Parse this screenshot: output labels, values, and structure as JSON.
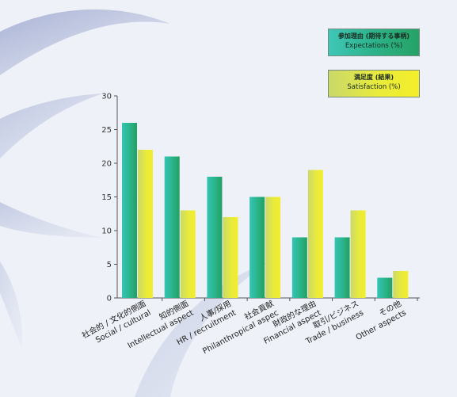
{
  "legend": {
    "expectations_jp": "参加理由 (期待する事柄)",
    "expectations_en": "Expectations (%)",
    "satisfaction_jp": "満足度 (結果)",
    "satisfaction_en": "Satisfaction (%)"
  },
  "chart_data": {
    "type": "bar",
    "categories": [
      {
        "jp": "社会的 / 文化的側面",
        "en": "Social / cultural"
      },
      {
        "jp": "知的側面",
        "en": "Intellectual aspect"
      },
      {
        "jp": "人事/採用",
        "en": "HR / recruitment"
      },
      {
        "jp": "社会貢献",
        "en": "Philanthropical aspec"
      },
      {
        "jp": "財政的な理由",
        "en": "Financial aspect"
      },
      {
        "jp": "取引/ビジネス",
        "en": "Trade / business"
      },
      {
        "jp": "その他",
        "en": "Other aspects"
      }
    ],
    "series": [
      {
        "name": "Expectations (%)",
        "values": [
          26,
          21,
          18,
          15,
          9,
          9,
          3
        ],
        "color": "#2bb58c"
      },
      {
        "name": "Satisfaction (%)",
        "values": [
          22,
          13,
          12,
          15,
          19,
          13,
          4
        ],
        "color": "#e6ea3a"
      }
    ],
    "ylim": [
      0,
      30
    ],
    "yticks": [
      0,
      5,
      10,
      15,
      20,
      25,
      30
    ],
    "grid": false,
    "legend_position": "top-right"
  }
}
